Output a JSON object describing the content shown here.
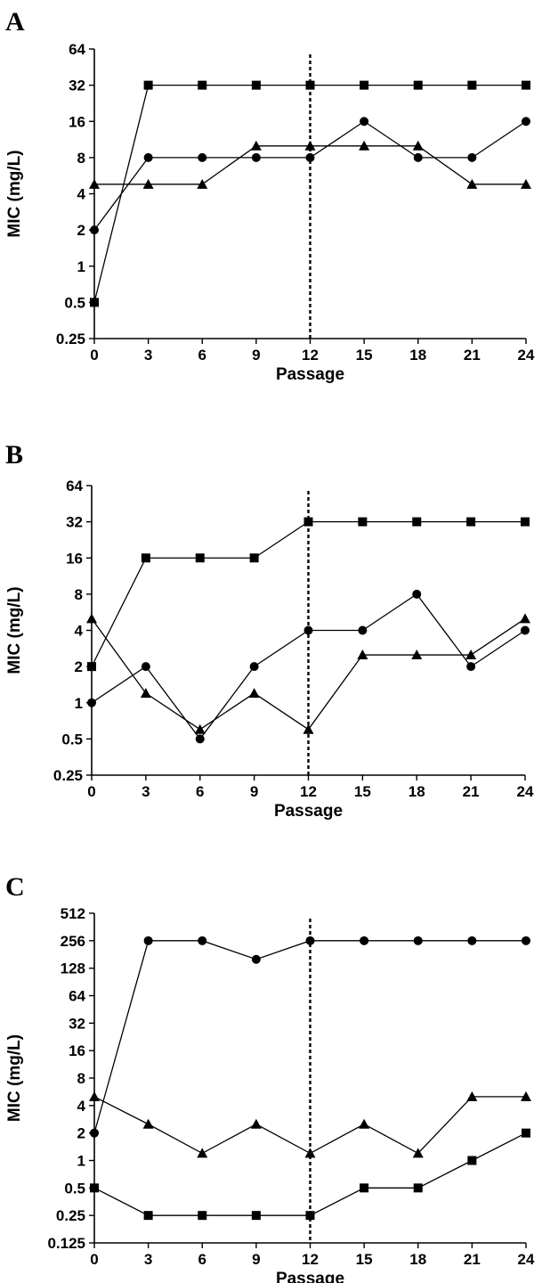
{
  "chart_data": [
    {
      "panel_label": "A",
      "type": "line",
      "xlabel": "Passage",
      "ylabel": "MIC (mg/L)",
      "x": [
        0,
        3,
        6,
        9,
        12,
        15,
        18,
        21,
        24
      ],
      "x_ticks": [
        "0",
        "3",
        "6",
        "9",
        "12",
        "15",
        "18",
        "21",
        "24"
      ],
      "y_scale": "log2",
      "ylim": [
        0.25,
        64
      ],
      "y_ticks": [
        {
          "value": 0.25,
          "label": "0.25"
        },
        {
          "value": 0.5,
          "label": "0.5"
        },
        {
          "value": 1,
          "label": "1"
        },
        {
          "value": 2,
          "label": "2"
        },
        {
          "value": 4,
          "label": "4"
        },
        {
          "value": 8,
          "label": "8"
        },
        {
          "value": 16,
          "label": "16"
        },
        {
          "value": 32,
          "label": "32"
        },
        {
          "value": 64,
          "label": "64"
        }
      ],
      "vline_x": 12,
      "series": [
        {
          "marker": "square",
          "values": [
            0.5,
            32,
            32,
            32,
            32,
            32,
            32,
            32,
            32
          ]
        },
        {
          "marker": "circle",
          "values": [
            2,
            8,
            8,
            8,
            8,
            16,
            8,
            8,
            16
          ]
        },
        {
          "marker": "triangle",
          "values": [
            4.8,
            4.8,
            4.8,
            10,
            10,
            10,
            10,
            4.8,
            4.8
          ]
        }
      ]
    },
    {
      "panel_label": "B",
      "type": "line",
      "xlabel": "Passage",
      "ylabel": "MIC (mg/L)",
      "x": [
        0,
        3,
        6,
        9,
        12,
        15,
        18,
        21,
        24
      ],
      "x_ticks": [
        "0",
        "3",
        "6",
        "9",
        "12",
        "15",
        "18",
        "21",
        "24"
      ],
      "y_scale": "log2",
      "ylim": [
        0.25,
        64
      ],
      "y_ticks": [
        {
          "value": 0.25,
          "label": "0.25"
        },
        {
          "value": 0.5,
          "label": "0.5"
        },
        {
          "value": 1,
          "label": "1"
        },
        {
          "value": 2,
          "label": "2"
        },
        {
          "value": 4,
          "label": "4"
        },
        {
          "value": 8,
          "label": "8"
        },
        {
          "value": 16,
          "label": "16"
        },
        {
          "value": 32,
          "label": "32"
        },
        {
          "value": 64,
          "label": "64"
        }
      ],
      "vline_x": 12,
      "series": [
        {
          "marker": "square",
          "values": [
            2,
            16,
            16,
            16,
            32,
            32,
            32,
            32,
            32
          ]
        },
        {
          "marker": "circle",
          "values": [
            1,
            2,
            0.5,
            2,
            4,
            4,
            8,
            2,
            4
          ]
        },
        {
          "marker": "triangle",
          "values": [
            5,
            1.2,
            0.6,
            1.2,
            0.6,
            2.5,
            2.5,
            2.5,
            5
          ]
        }
      ]
    },
    {
      "panel_label": "C",
      "type": "line",
      "xlabel": "Passage",
      "ylabel": "MIC (mg/L)",
      "x": [
        0,
        3,
        6,
        9,
        12,
        15,
        18,
        21,
        24
      ],
      "x_ticks": [
        "0",
        "3",
        "6",
        "9",
        "12",
        "15",
        "18",
        "21",
        "24"
      ],
      "y_scale": "log2",
      "ylim": [
        0.125,
        512
      ],
      "y_ticks": [
        {
          "value": 0.125,
          "label": "0.125"
        },
        {
          "value": 0.25,
          "label": "0.25"
        },
        {
          "value": 0.5,
          "label": "0.5"
        },
        {
          "value": 1,
          "label": "1"
        },
        {
          "value": 2,
          "label": "2"
        },
        {
          "value": 4,
          "label": "4"
        },
        {
          "value": 8,
          "label": "8"
        },
        {
          "value": 16,
          "label": "16"
        },
        {
          "value": 32,
          "label": "32"
        },
        {
          "value": 64,
          "label": "64"
        },
        {
          "value": 128,
          "label": "128"
        },
        {
          "value": 256,
          "label": "256"
        },
        {
          "value": 512,
          "label": "512"
        }
      ],
      "vline_x": 12,
      "series": [
        {
          "marker": "square",
          "values": [
            0.5,
            0.25,
            0.25,
            0.25,
            0.25,
            0.5,
            0.5,
            1,
            2
          ]
        },
        {
          "marker": "circle",
          "values": [
            2,
            256,
            256,
            160,
            256,
            256,
            256,
            256,
            256
          ]
        },
        {
          "marker": "triangle",
          "values": [
            5,
            2.5,
            1.2,
            2.5,
            1.2,
            2.5,
            1.2,
            5,
            5
          ]
        }
      ]
    }
  ]
}
